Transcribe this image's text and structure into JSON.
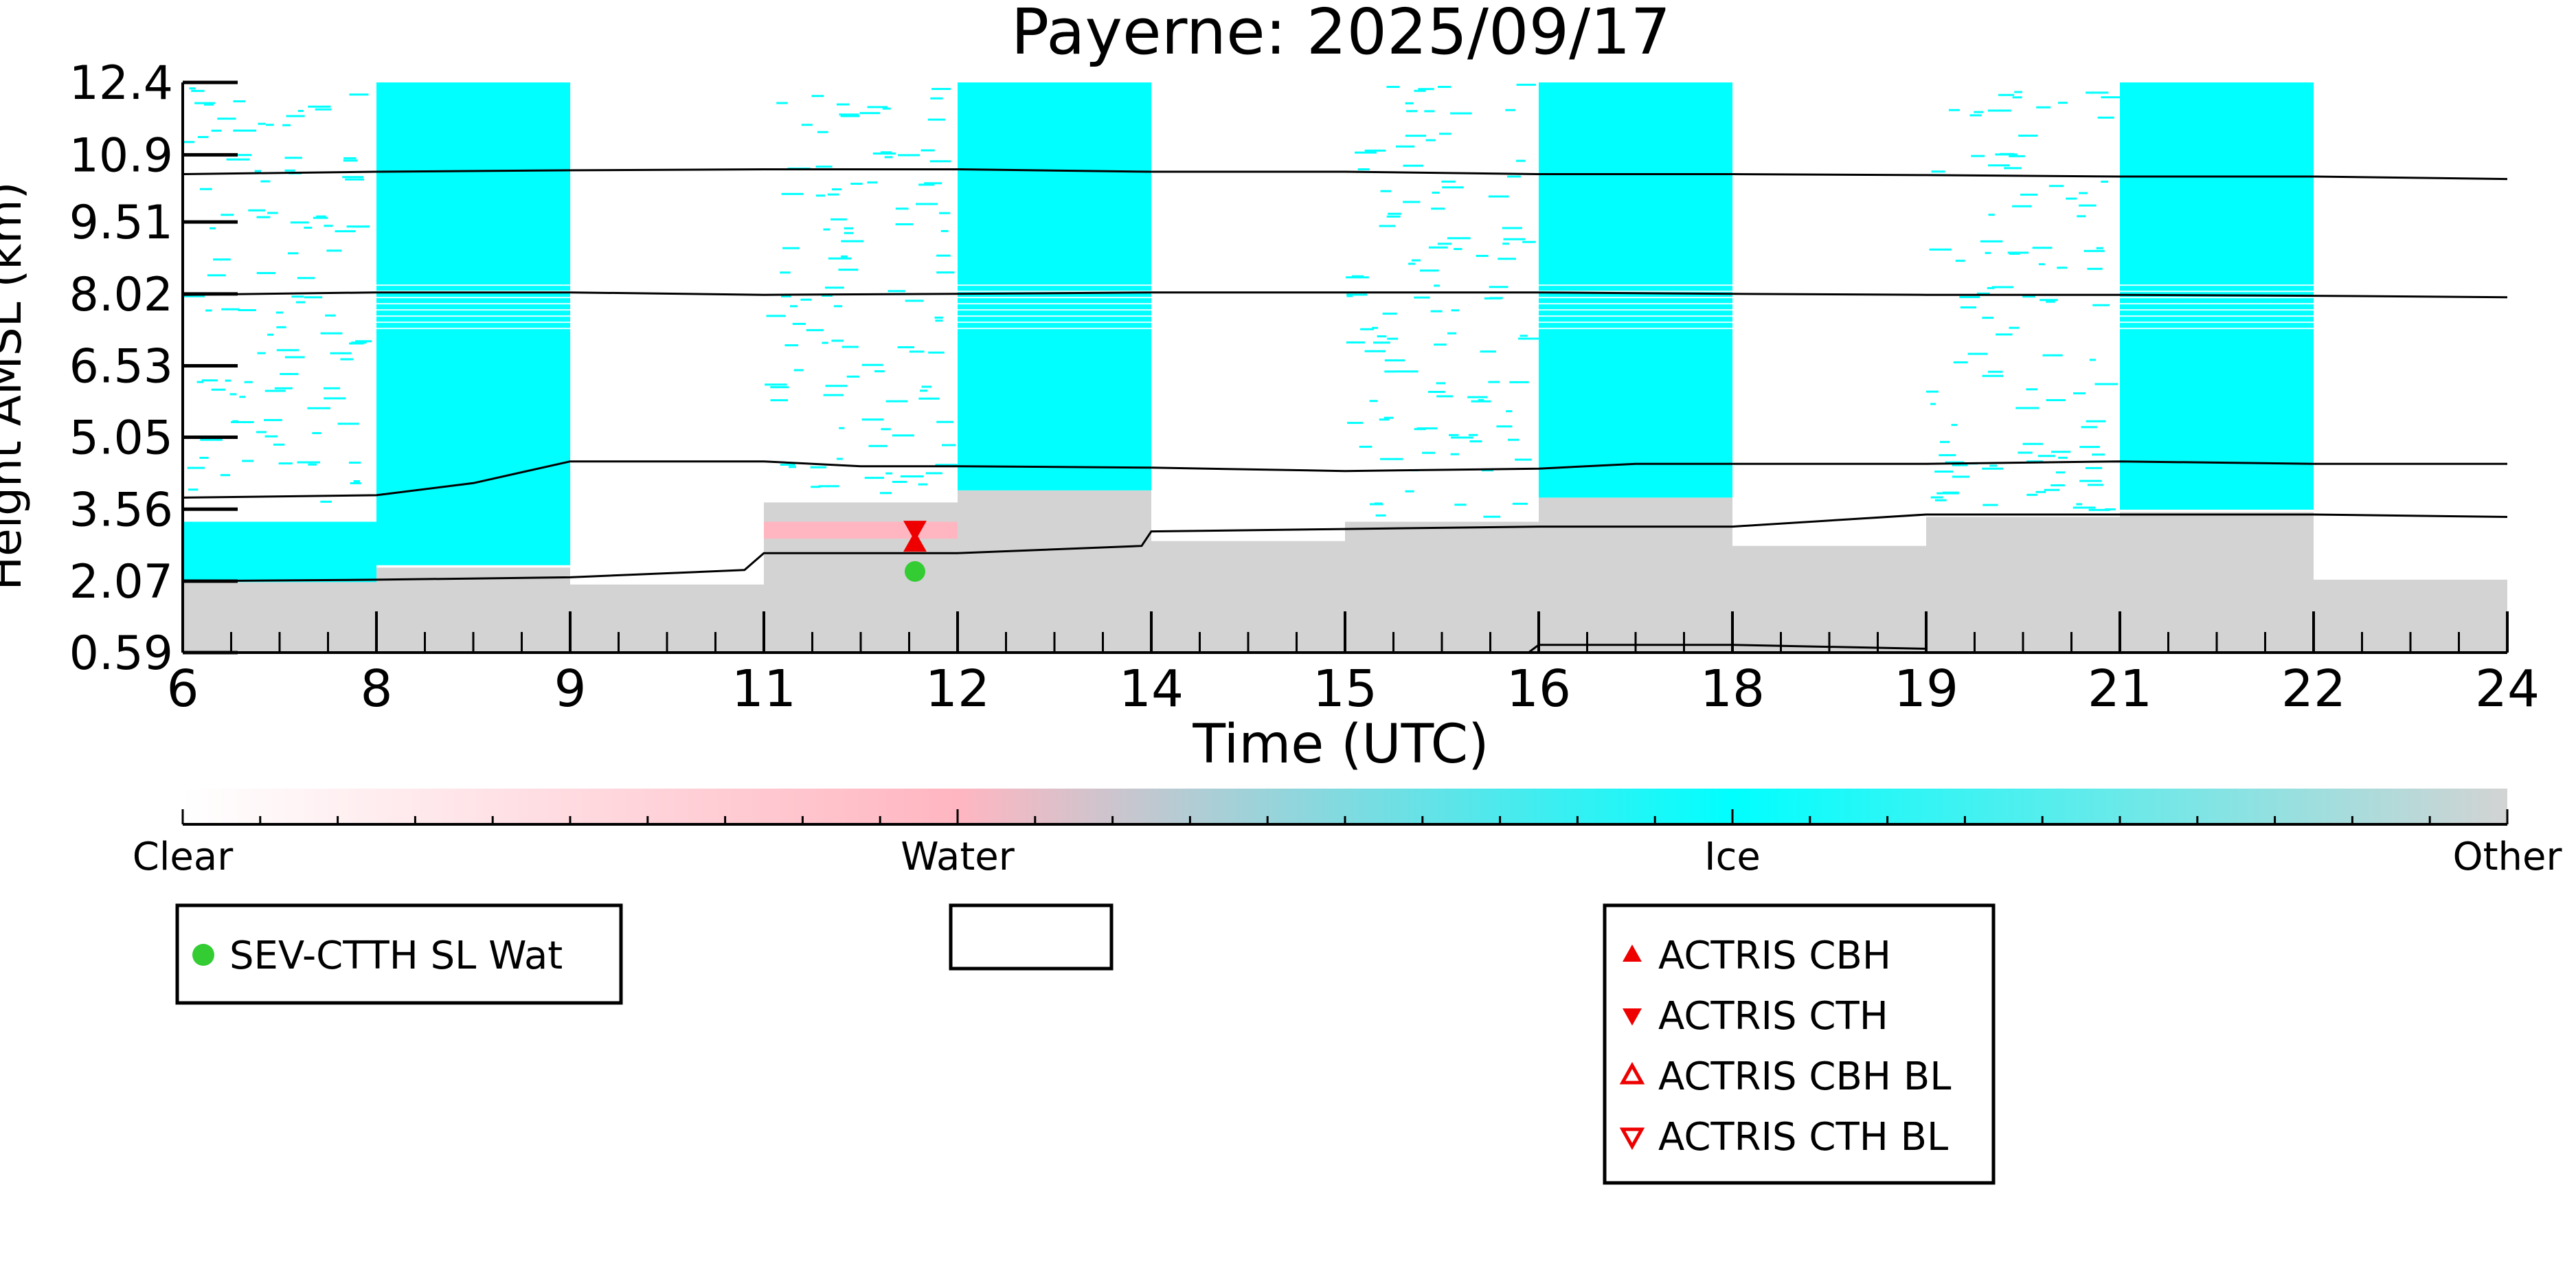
{
  "chart_data": {
    "type": "heatmap",
    "title": "Payerne: 2025/09/17",
    "xlabel": "Time (UTC)",
    "ylabel": "Height AMSL (km)",
    "xlim": [
      0,
      12
    ],
    "ylim": [
      0.59,
      12.4
    ],
    "x_ticks": [
      {
        "pos": 0,
        "label": "6"
      },
      {
        "pos": 1,
        "label": "8"
      },
      {
        "pos": 2,
        "label": "9"
      },
      {
        "pos": 3,
        "label": "11"
      },
      {
        "pos": 4,
        "label": "12"
      },
      {
        "pos": 5,
        "label": "14"
      },
      {
        "pos": 6,
        "label": "15"
      },
      {
        "pos": 7,
        "label": "16"
      },
      {
        "pos": 8,
        "label": "18"
      },
      {
        "pos": 9,
        "label": "19"
      },
      {
        "pos": 10,
        "label": "21"
      },
      {
        "pos": 11,
        "label": "22"
      },
      {
        "pos": 12,
        "label": "24"
      }
    ],
    "y_ticks": [
      "0.59",
      "2.07",
      "3.56",
      "5.05",
      "6.53",
      "8.02",
      "9.51",
      "10.9",
      "12.4"
    ],
    "classes": [
      {
        "name": "Clear",
        "color": "#ffffff"
      },
      {
        "name": "Water",
        "color": "#ffb6c1"
      },
      {
        "name": "Ice",
        "color": "#00ffff"
      },
      {
        "name": "Other",
        "color": "#d3d3d3"
      }
    ],
    "blocks": [
      {
        "x0": 0,
        "x1": 1,
        "ice_style": "sparse",
        "ice_top": 12.4,
        "ice_bottom": 3.55,
        "dense_ice_top": 3.3,
        "dense_ice_bottom": 2.05,
        "water_top": null,
        "water_bottom": null,
        "other_top": 2.05
      },
      {
        "x0": 1,
        "x1": 2,
        "ice_style": "solid",
        "ice_top": 12.4,
        "ice_bottom": 2.4,
        "water_top": null,
        "water_bottom": null,
        "other_top": 2.35
      },
      {
        "x0": 2,
        "x1": 3,
        "ice_style": "none",
        "ice_top": null,
        "ice_bottom": null,
        "water_top": null,
        "water_bottom": null,
        "other_top": 2.0
      },
      {
        "x0": 3,
        "x1": 4,
        "ice_style": "sparse",
        "ice_top": 12.4,
        "ice_bottom": 3.7,
        "water_top": 3.3,
        "water_bottom": 2.95,
        "other_top": 3.7
      },
      {
        "x0": 4,
        "x1": 5,
        "ice_style": "solid",
        "ice_top": 12.4,
        "ice_bottom": 3.95,
        "water_top": null,
        "water_bottom": null,
        "other_top": 3.95
      },
      {
        "x0": 5,
        "x1": 6,
        "ice_style": "none",
        "ice_top": null,
        "ice_bottom": null,
        "water_top": null,
        "water_bottom": null,
        "other_top": 2.9
      },
      {
        "x0": 6,
        "x1": 7,
        "ice_style": "sparse",
        "ice_top": 12.4,
        "ice_bottom": 3.3,
        "water_top": null,
        "water_bottom": null,
        "other_top": 3.3
      },
      {
        "x0": 7,
        "x1": 8,
        "ice_style": "solid",
        "ice_top": 12.4,
        "ice_bottom": 3.8,
        "water_top": null,
        "water_bottom": null,
        "other_top": 3.8
      },
      {
        "x0": 8,
        "x1": 9,
        "ice_style": "none",
        "ice_top": null,
        "ice_bottom": null,
        "water_top": null,
        "water_bottom": null,
        "other_top": 2.8
      },
      {
        "x0": 9,
        "x1": 10,
        "ice_style": "sparse",
        "ice_top": 12.4,
        "ice_bottom": 3.45,
        "water_top": null,
        "water_bottom": null,
        "other_top": 3.4
      },
      {
        "x0": 10,
        "x1": 11,
        "ice_style": "solid",
        "ice_top": 12.4,
        "ice_bottom": 3.55,
        "water_top": null,
        "water_bottom": null,
        "other_top": 3.5
      },
      {
        "x0": 11,
        "x1": 12,
        "ice_style": "none",
        "ice_top": null,
        "ice_bottom": null,
        "water_top": null,
        "water_bottom": null,
        "other_top": 2.1
      }
    ],
    "lines": [
      {
        "x": [
          0,
          1,
          2,
          3,
          4,
          5,
          6,
          7,
          8,
          9,
          10,
          11,
          12
        ],
        "y": [
          10.5,
          10.55,
          10.58,
          10.6,
          10.6,
          10.55,
          10.55,
          10.5,
          10.5,
          10.48,
          10.45,
          10.45,
          10.4
        ]
      },
      {
        "x": [
          0,
          1,
          2,
          3,
          4,
          5,
          6,
          7,
          8,
          9,
          10,
          11,
          12
        ],
        "y": [
          8.0,
          8.05,
          8.05,
          8.0,
          8.02,
          8.05,
          8.05,
          8.05,
          8.02,
          8.0,
          8.0,
          7.98,
          7.95
        ]
      },
      {
        "x": [
          0,
          1,
          1.5,
          2,
          2.5,
          3,
          3.5,
          4,
          5,
          6,
          7,
          7.5,
          8,
          9,
          10,
          11,
          12
        ],
        "y": [
          3.8,
          3.85,
          4.1,
          4.55,
          4.55,
          4.55,
          4.45,
          4.45,
          4.42,
          4.35,
          4.4,
          4.5,
          4.5,
          4.5,
          4.55,
          4.5,
          4.5
        ]
      },
      {
        "x": [
          0,
          1,
          2,
          2.9,
          3,
          3.5,
          4,
          4.95,
          5,
          6,
          7,
          8,
          9,
          10,
          11,
          12
        ],
        "y": [
          2.07,
          2.1,
          2.15,
          2.3,
          2.65,
          2.65,
          2.65,
          2.8,
          3.1,
          3.15,
          3.2,
          3.2,
          3.45,
          3.45,
          3.45,
          3.4
        ]
      },
      {
        "x": [
          6.95,
          7,
          8,
          9
        ],
        "y": [
          0.6,
          0.75,
          0.75,
          0.67
        ]
      }
    ],
    "markers": [
      {
        "series": "ACTRIS CBH",
        "x": 3.78,
        "y": 2.85
      },
      {
        "series": "ACTRIS CTH",
        "x": 3.78,
        "y": 3.15
      },
      {
        "series": "SEV-CTTH SL Wat",
        "x": 3.78,
        "y": 2.27
      }
    ],
    "legend_left": [
      {
        "label": "SEV-CTTH SL Wat",
        "marker": "circle",
        "color": "#33cc33"
      }
    ],
    "legend_right": [
      {
        "label": "ACTRIS CBH",
        "marker": "triangle-up",
        "color": "#ee0000"
      },
      {
        "label": "ACTRIS CTH",
        "marker": "triangle-down",
        "color": "#ee0000"
      },
      {
        "label": "ACTRIS CBH BL",
        "marker": "triangle-up-open",
        "color": "#ee0000"
      },
      {
        "label": "ACTRIS CTH BL",
        "marker": "triangle-down-open",
        "color": "#ee0000"
      }
    ]
  }
}
